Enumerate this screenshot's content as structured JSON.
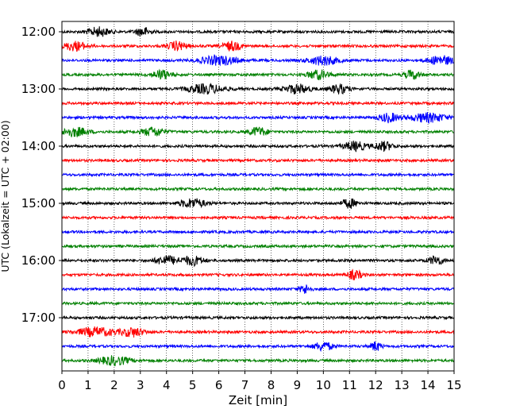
{
  "chart_data": {
    "type": "line",
    "title": "",
    "xlabel": "Zeit  [min]",
    "ylabel": "UTC (Lokalzeit = UTC + 02:00)",
    "xlim": [
      0,
      15
    ],
    "x_ticks": [
      "0",
      "1",
      "2",
      "3",
      "4",
      "5",
      "6",
      "7",
      "8",
      "9",
      "10",
      "11",
      "12",
      "13",
      "14",
      "15"
    ],
    "y_ticks": [
      "12:00",
      "13:00",
      "14:00",
      "15:00",
      "16:00",
      "17:00"
    ],
    "grid": "vertical dotted at each minute",
    "legend": "none",
    "colors_cycle": [
      "#000000",
      "#ff0000",
      "#0000ff",
      "#008000"
    ],
    "series": [
      {
        "label": "12:00",
        "color": "#000000",
        "bursts": [
          [
            1.4,
            0.6
          ],
          [
            3.1,
            0.4
          ]
        ]
      },
      {
        "label": "12:15",
        "color": "#ff0000",
        "bursts": [
          [
            0.5,
            0.6
          ],
          [
            4.4,
            0.5
          ],
          [
            6.5,
            0.5
          ]
        ]
      },
      {
        "label": "12:30",
        "color": "#0000ff",
        "bursts": [
          [
            6.0,
            1.0
          ],
          [
            10.0,
            0.8
          ],
          [
            14.5,
            0.7
          ]
        ]
      },
      {
        "label": "12:45",
        "color": "#008000",
        "bursts": [
          [
            3.8,
            0.5
          ],
          [
            9.8,
            0.6
          ],
          [
            13.4,
            0.4
          ]
        ]
      },
      {
        "label": "13:00",
        "color": "#000000",
        "bursts": [
          [
            5.5,
            1.0
          ],
          [
            9.0,
            0.7
          ],
          [
            10.6,
            0.5
          ]
        ]
      },
      {
        "label": "13:15",
        "color": "#ff0000",
        "bursts": []
      },
      {
        "label": "13:30",
        "color": "#0000ff",
        "bursts": [
          [
            12.5,
            0.5
          ],
          [
            14.0,
            1.0
          ]
        ]
      },
      {
        "label": "13:45",
        "color": "#008000",
        "bursts": [
          [
            0.5,
            0.7
          ],
          [
            3.5,
            0.6
          ],
          [
            7.5,
            0.5
          ]
        ]
      },
      {
        "label": "14:00",
        "color": "#000000",
        "bursts": [
          [
            11.2,
            0.6
          ],
          [
            12.3,
            0.5
          ]
        ]
      },
      {
        "label": "14:15",
        "color": "#ff0000",
        "bursts": []
      },
      {
        "label": "14:30",
        "color": "#0000ff",
        "bursts": []
      },
      {
        "label": "14:45",
        "color": "#008000",
        "bursts": []
      },
      {
        "label": "15:00",
        "color": "#000000",
        "bursts": [
          [
            5.0,
            0.7
          ],
          [
            11.0,
            0.4
          ]
        ]
      },
      {
        "label": "15:15",
        "color": "#ff0000",
        "bursts": []
      },
      {
        "label": "15:30",
        "color": "#0000ff",
        "bursts": []
      },
      {
        "label": "15:45",
        "color": "#008000",
        "bursts": []
      },
      {
        "label": "16:00",
        "color": "#000000",
        "bursts": [
          [
            4.0,
            0.6
          ],
          [
            5.0,
            0.6
          ],
          [
            14.3,
            0.4
          ]
        ]
      },
      {
        "label": "16:15",
        "color": "#ff0000",
        "bursts": [
          [
            11.2,
            0.4
          ]
        ]
      },
      {
        "label": "16:30",
        "color": "#0000ff",
        "bursts": [
          [
            9.3,
            0.3
          ]
        ]
      },
      {
        "label": "16:45",
        "color": "#008000",
        "bursts": []
      },
      {
        "label": "17:00",
        "color": "#000000",
        "bursts": []
      },
      {
        "label": "17:15",
        "color": "#ff0000",
        "bursts": [
          [
            1.3,
            1.0
          ],
          [
            2.7,
            0.6
          ]
        ]
      },
      {
        "label": "17:30",
        "color": "#0000ff",
        "bursts": [
          [
            10.0,
            0.5
          ],
          [
            12.0,
            0.3
          ]
        ]
      },
      {
        "label": "17:45",
        "color": "#008000",
        "bursts": [
          [
            2.0,
            0.8
          ]
        ]
      }
    ]
  }
}
